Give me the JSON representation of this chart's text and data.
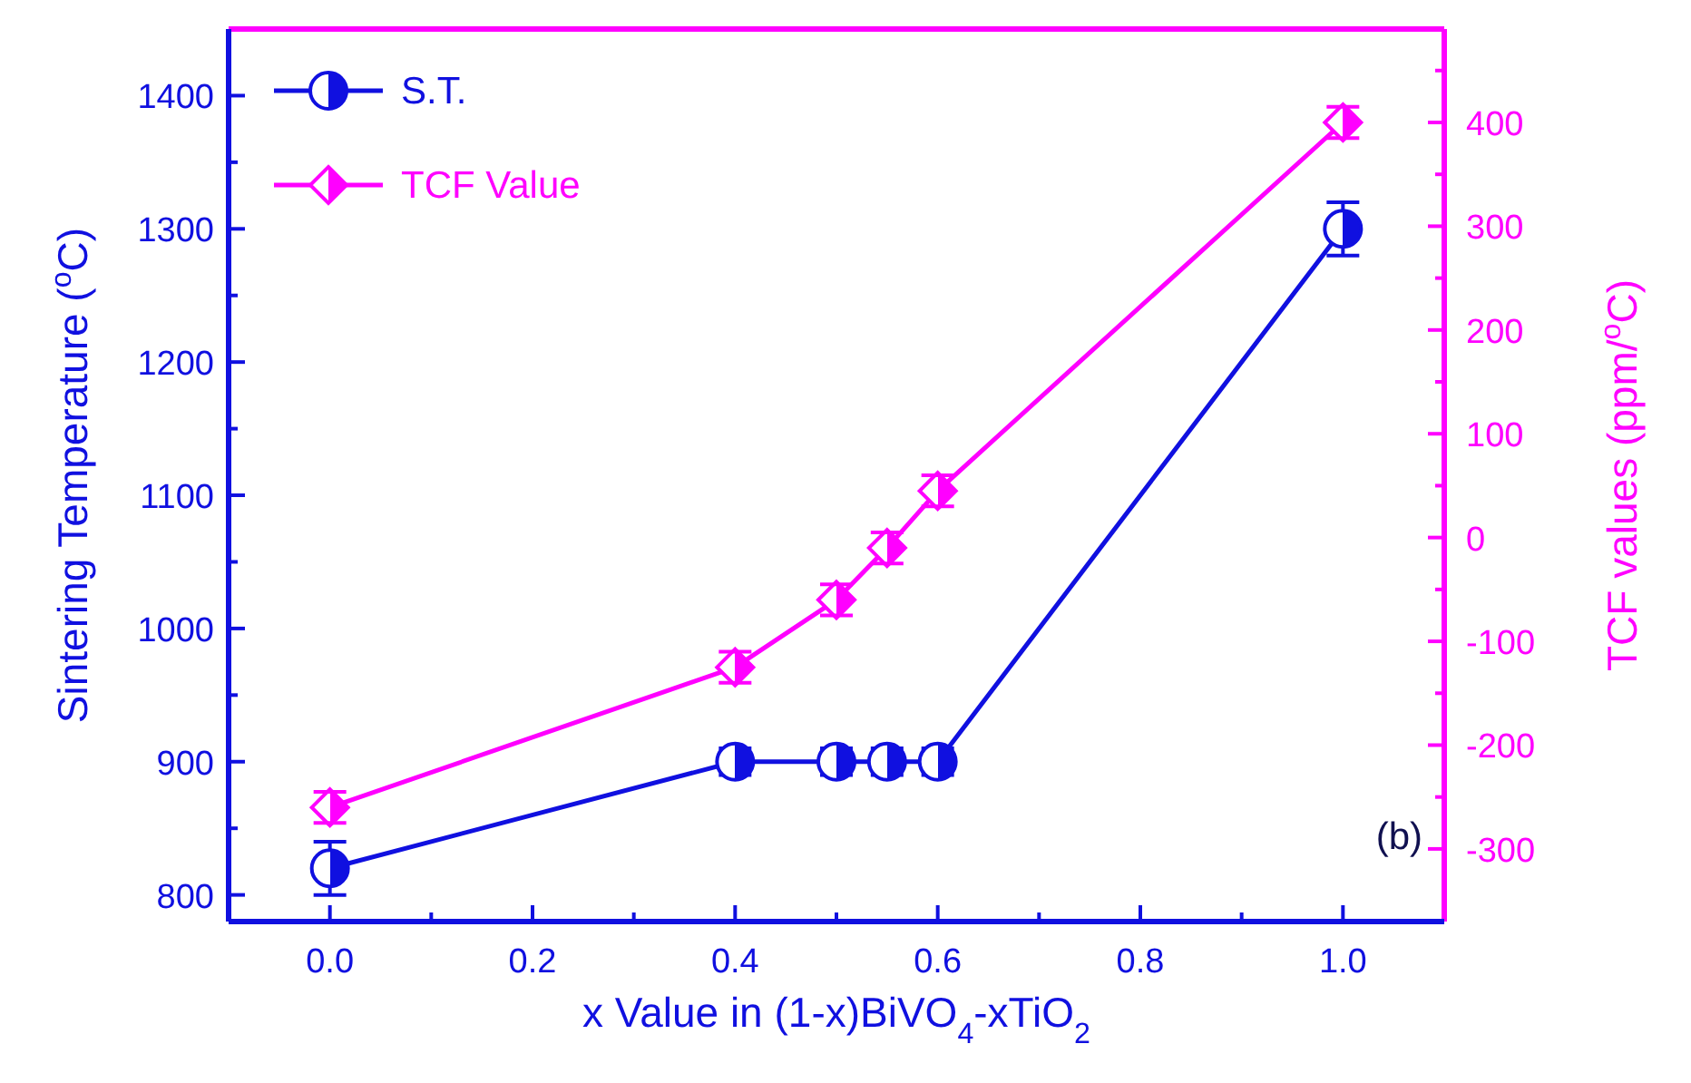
{
  "chart_data": {
    "type": "line",
    "xlabel": "x Value in (1-x)BiVO$_{4}$-xTiO$_{2}$",
    "ylabel": "Sintering Temperature ($^{o}$C)",
    "y2label": "TCF values (ppm/$^{o}$C)",
    "xlim": [
      -0.1,
      1.1
    ],
    "xticks": [
      {
        "value": 0,
        "label": "0.0"
      },
      {
        "value": 0.1,
        "label": null
      },
      {
        "value": 0.2,
        "label": "0.2"
      },
      {
        "value": 0.3,
        "label": null
      },
      {
        "value": 0.4,
        "label": "0.4"
      },
      {
        "value": 0.5,
        "label": null
      },
      {
        "value": 0.6,
        "label": "0.6"
      },
      {
        "value": 0.7,
        "label": null
      },
      {
        "value": 0.8,
        "label": "0.8"
      },
      {
        "value": 0.9,
        "label": null
      },
      {
        "value": 1,
        "label": "1.0"
      }
    ],
    "ylim": [
      780,
      1450
    ],
    "yticks": [
      800,
      {
        "value": 850,
        "label": null
      },
      900,
      {
        "value": 950,
        "label": null
      },
      1000,
      {
        "value": 1050,
        "label": null
      },
      1100,
      {
        "value": 1150,
        "label": null
      },
      1200,
      {
        "value": 1250,
        "label": null
      },
      1300,
      {
        "value": 1350,
        "label": null
      },
      1400
    ],
    "y2lim": [
      -370,
      490
    ],
    "y2ticks": [
      -300,
      {
        "value": -250,
        "label": null
      },
      -200,
      {
        "value": -150,
        "label": null
      },
      -100,
      {
        "value": -50,
        "label": null
      },
      0,
      {
        "value": 50,
        "label": null
      },
      100,
      {
        "value": 150,
        "label": null
      },
      200,
      {
        "value": 250,
        "label": null
      },
      300,
      {
        "value": 350,
        "label": null
      },
      400,
      {
        "value": 450,
        "label": null
      }
    ],
    "series": [
      {
        "name": "S.T.",
        "color": "#1010e0",
        "x": [
          0,
          0.4,
          0.5,
          0.55,
          0.6,
          1
        ],
        "values": [
          820,
          900,
          900,
          900,
          900,
          1300
        ],
        "errors": [
          20,
          10,
          10,
          10,
          10,
          20
        ],
        "marker": "circle"
      },
      {
        "name": "TCF Value",
        "color": "#ff00ff",
        "axis": "y2",
        "x": [
          0,
          0.4,
          0.5,
          0.55,
          0.6,
          1
        ],
        "values": [
          -260,
          -125,
          -60,
          -10,
          45,
          400
        ],
        "errors": [
          15,
          15,
          15,
          15,
          15,
          15
        ],
        "marker": "diamond"
      }
    ],
    "annotations": [
      "(b)"
    ],
    "legend": "top left",
    "grid": false,
    "line_style": "solid"
  }
}
